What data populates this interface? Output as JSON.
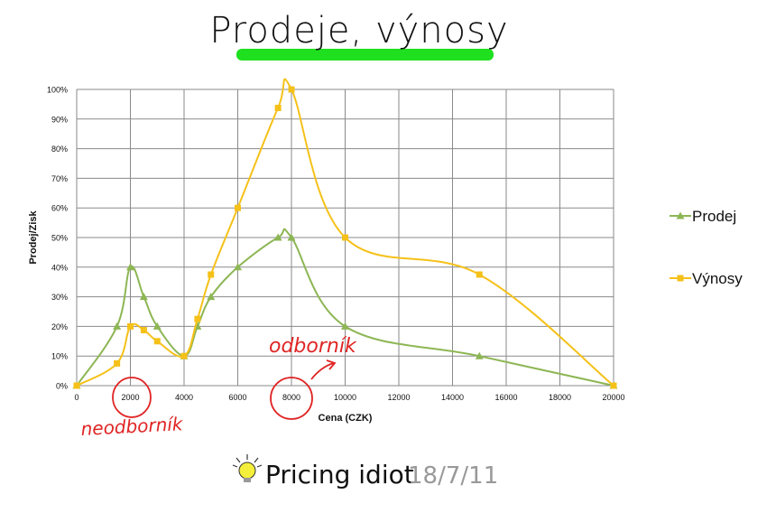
{
  "header": {
    "title": "Prodeje, výnosy"
  },
  "annotations": {
    "expert": "odborník",
    "non_expert": "neodborník"
  },
  "footer": {
    "brand": "Pricing idiot",
    "date": "18/7/11"
  },
  "chart_data": {
    "type": "line",
    "xlabel": "Cena (CZK)",
    "ylabel": "Prodej/Zisk",
    "xlim": [
      0,
      20000
    ],
    "ylim": [
      0,
      100
    ],
    "x_ticks": [
      "0",
      "2000",
      "4000",
      "6000",
      "8000",
      "10000",
      "12000",
      "14000",
      "16000",
      "18000",
      "20000"
    ],
    "y_ticks": [
      "0%",
      "10%",
      "20%",
      "30%",
      "40%",
      "50%",
      "60%",
      "70%",
      "80%",
      "90%",
      "100%"
    ],
    "grid": true,
    "legend_position": "right",
    "series": [
      {
        "name": "Prodej",
        "color": "#8db654",
        "marker": "triangle",
        "points": [
          [
            0,
            0
          ],
          [
            1500,
            20
          ],
          [
            2000,
            40
          ],
          [
            2500,
            30
          ],
          [
            3000,
            20
          ],
          [
            4000,
            10
          ],
          [
            4500,
            20
          ],
          [
            5000,
            30
          ],
          [
            6000,
            40
          ],
          [
            7500,
            50
          ],
          [
            8000,
            50
          ],
          [
            10000,
            20
          ],
          [
            15000,
            10
          ],
          [
            20000,
            0
          ]
        ]
      },
      {
        "name": "Výnosy",
        "color": "#f5c119",
        "marker": "square",
        "points": [
          [
            0,
            0
          ],
          [
            1500,
            7.5
          ],
          [
            2000,
            20
          ],
          [
            2500,
            18.75
          ],
          [
            3000,
            15
          ],
          [
            4000,
            10
          ],
          [
            4500,
            22.5
          ],
          [
            5000,
            37.5
          ],
          [
            6000,
            60
          ],
          [
            7500,
            93.75
          ],
          [
            8000,
            100
          ],
          [
            10000,
            50
          ],
          [
            15000,
            37.5
          ],
          [
            20000,
            0
          ]
        ]
      }
    ]
  }
}
